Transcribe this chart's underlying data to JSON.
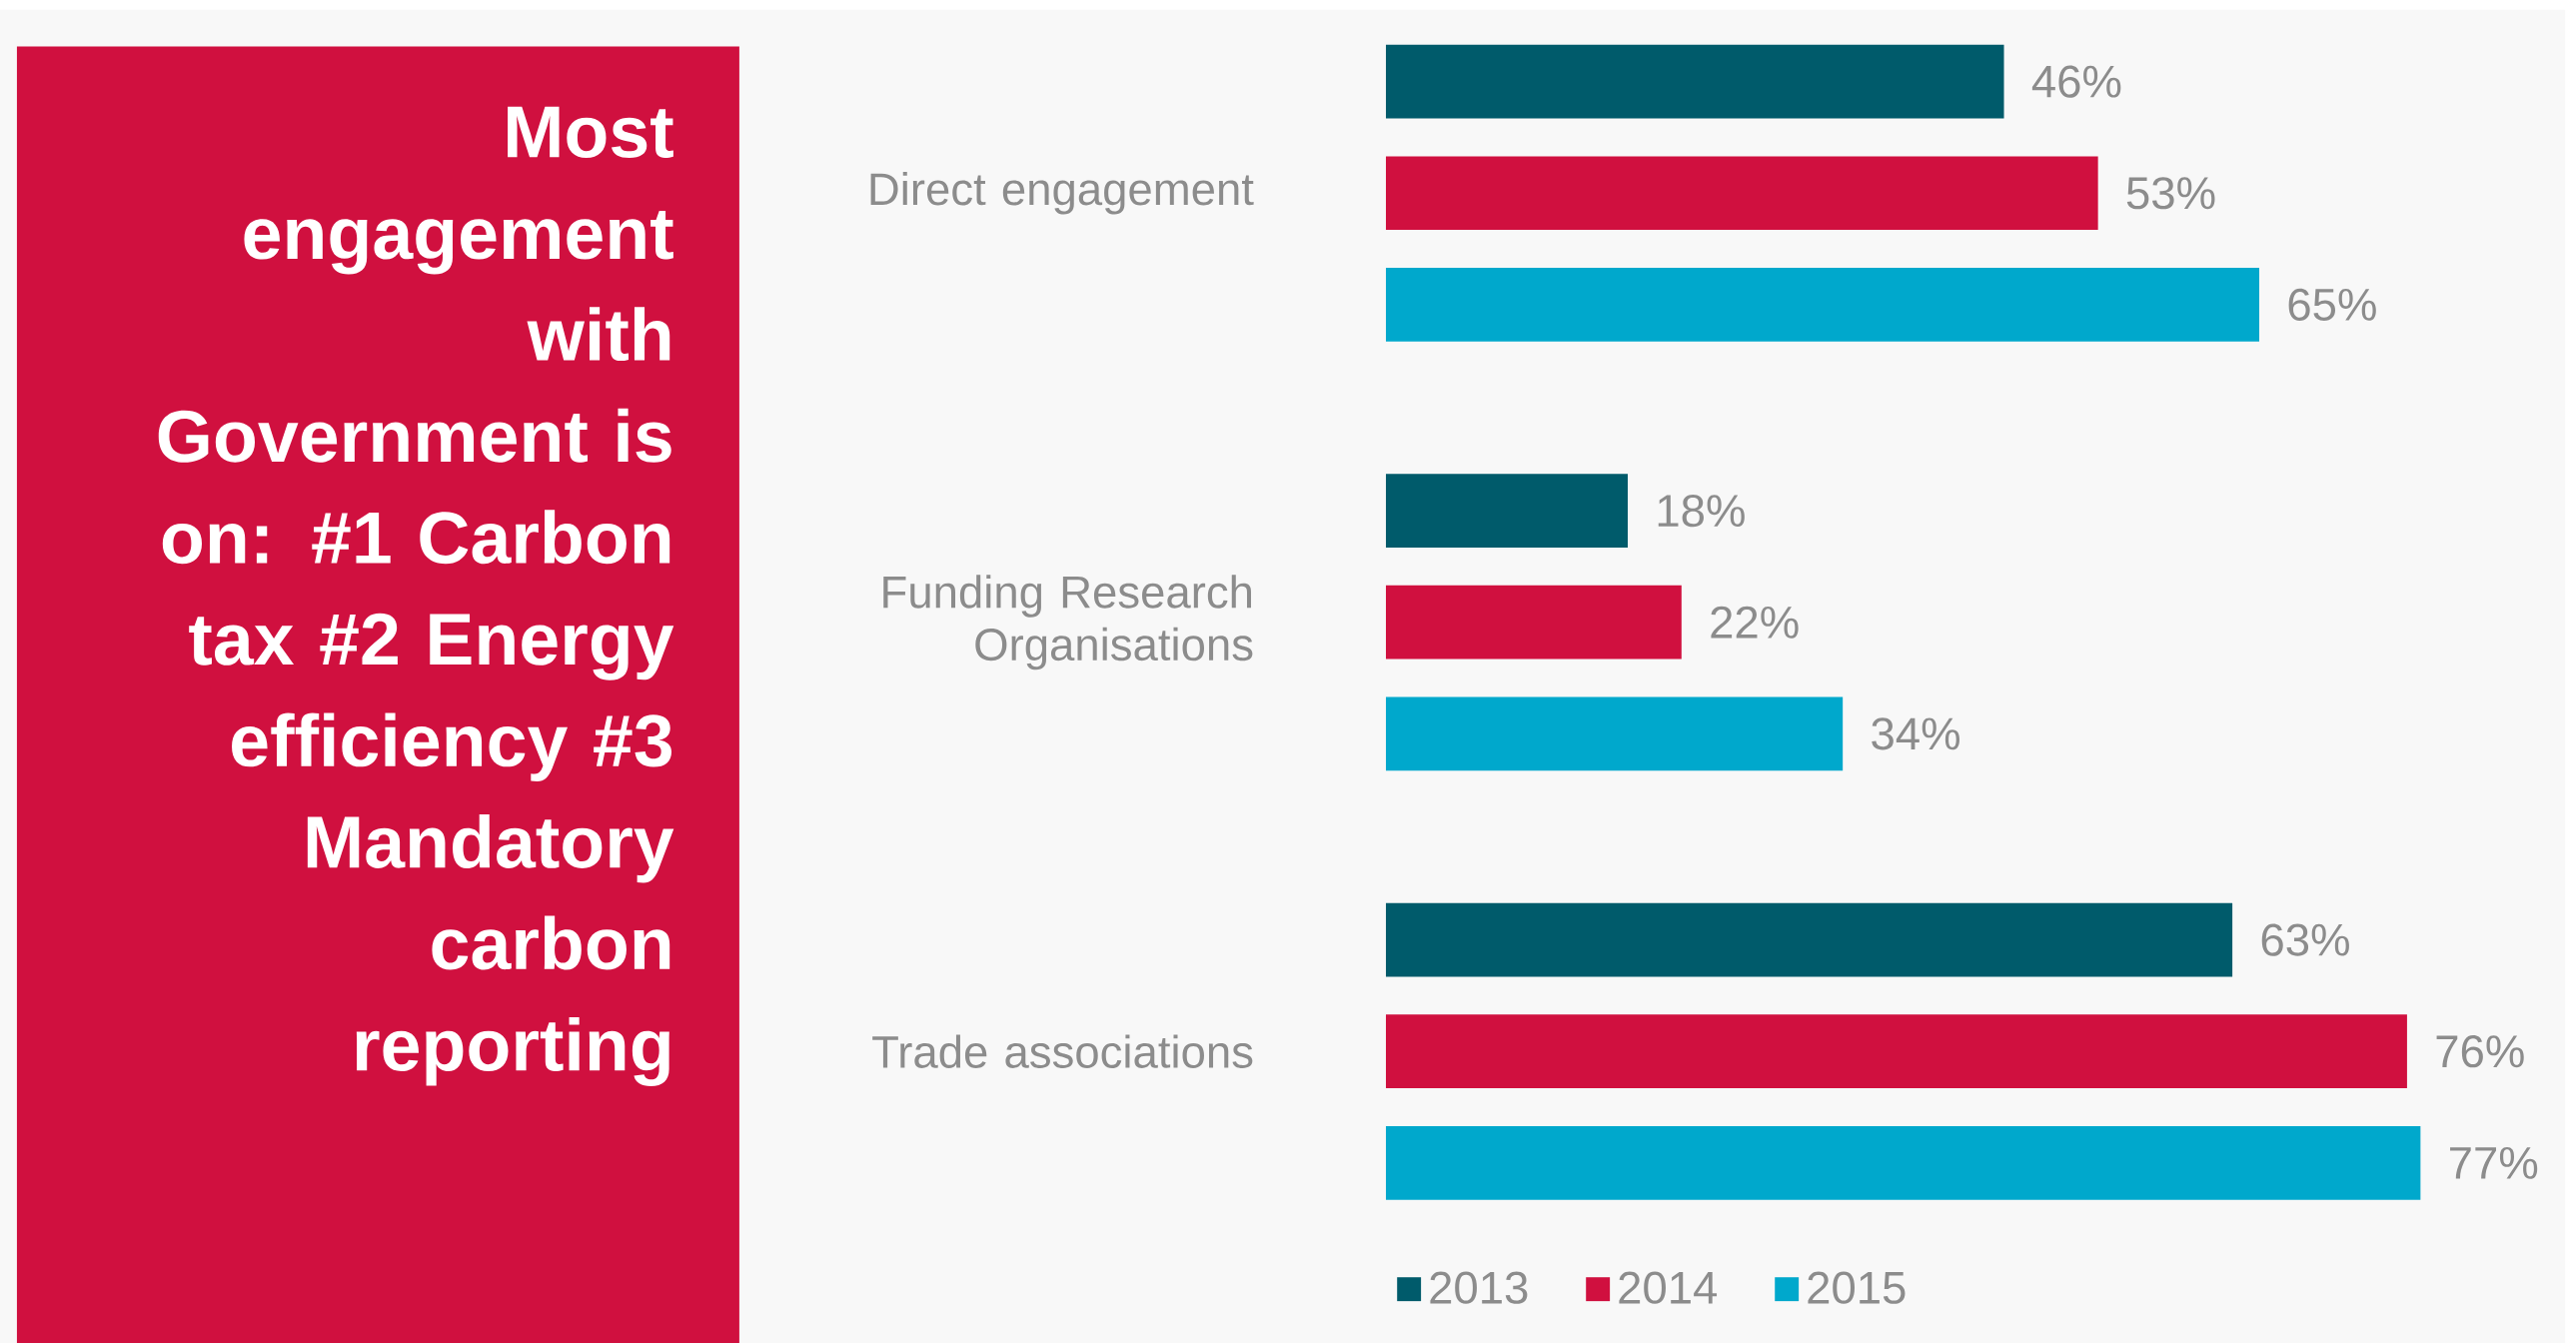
{
  "chart_data": {
    "type": "bar",
    "orientation": "horizontal",
    "title": "Most engagement with Government is on: #1 Carbon tax #2 Energy efficiency #3 Mandatory carbon reporting",
    "categories": [
      "Direct engagement",
      "Funding Research Organisations",
      "Trade associations"
    ],
    "series": [
      {
        "name": "2013",
        "color": "#005b6b",
        "values": [
          46,
          18,
          63
        ],
        "value_labels": [
          "46%",
          "18%",
          "63%"
        ]
      },
      {
        "name": "2014",
        "color": "#d0103f",
        "values": [
          53,
          22,
          76
        ],
        "value_labels": [
          "53%",
          "22%",
          "76%"
        ]
      },
      {
        "name": "2015",
        "color": "#00a8cc",
        "values": [
          65,
          34,
          77
        ],
        "value_labels": [
          "65%",
          "34%",
          "77%"
        ]
      }
    ],
    "legend": "bottom left"
  }
}
